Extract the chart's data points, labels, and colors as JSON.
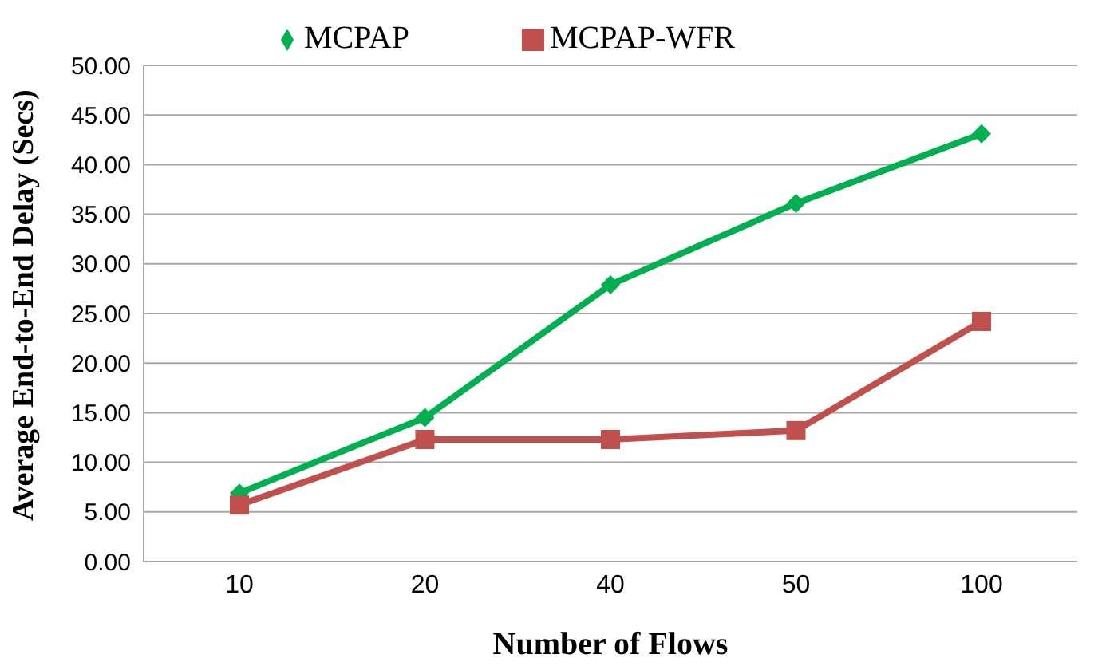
{
  "chart_data": {
    "type": "line",
    "xlabel": "Number of Flows",
    "ylabel": "Average  End-to-End Delay (Secs)",
    "categories": [
      "10",
      "20",
      "40",
      "50",
      "100"
    ],
    "series": [
      {
        "name": "MCPAP",
        "color": "#00b050",
        "values": [
          6.9,
          14.5,
          27.9,
          36.1,
          43.1
        ],
        "marker": "diamond"
      },
      {
        "name": "MCPAP-WFR",
        "color": "#c0504d",
        "values": [
          5.7,
          12.3,
          12.3,
          13.2,
          24.2
        ],
        "marker": "square"
      }
    ],
    "ylim": [
      0,
      50
    ],
    "yticks": [
      {
        "value": 0,
        "label": "0.00"
      },
      {
        "value": 5,
        "label": "5.00"
      },
      {
        "value": 10,
        "label": "10.00"
      },
      {
        "value": 15,
        "label": "15.00"
      },
      {
        "value": 20,
        "label": "20.00"
      },
      {
        "value": 25,
        "label": "25.00"
      },
      {
        "value": 30,
        "label": "30.00"
      },
      {
        "value": 35,
        "label": "35.00"
      },
      {
        "value": 40,
        "label": "40.00"
      },
      {
        "value": 45,
        "label": "45.00"
      },
      {
        "value": 50,
        "label": "50.00"
      }
    ],
    "grid": "y",
    "legend": "top",
    "line_style": "solid"
  }
}
